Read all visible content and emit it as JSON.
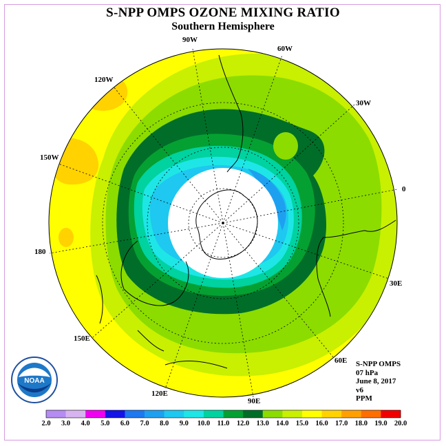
{
  "title": "S-NPP OMPS OZONE MIXING RATIO",
  "subtitle": "Southern Hemisphere",
  "longitude_labels": [
    "90W",
    "60W",
    "30W",
    "0",
    "30E",
    "60E",
    "90E",
    "120E",
    "150E",
    "180",
    "150W",
    "120W"
  ],
  "info": {
    "instrument": "S-NPP OMPS",
    "level": "07 hPa",
    "date": "June 8, 2017",
    "version": "v6",
    "units": "PPM"
  },
  "colorbar": {
    "labels": [
      "2.0",
      "3.0",
      "4.0",
      "5.0",
      "6.0",
      "7.0",
      "8.0",
      "9.0",
      "10.0",
      "11.0",
      "12.0",
      "13.0",
      "14.0",
      "15.0",
      "16.0",
      "17.0",
      "18.0",
      "19.0",
      "20.0"
    ],
    "colors": [
      "#b48cf2",
      "#d7b4f0",
      "#f000f0",
      "#1414e6",
      "#1e78f0",
      "#1ea0f0",
      "#1ec8f0",
      "#1ee6e6",
      "#00d2a0",
      "#05a032",
      "#006e28",
      "#8cdc00",
      "#c8f000",
      "#ffff00",
      "#ffd200",
      "#ffa000",
      "#ff6e00",
      "#f00000",
      "#8c5a3c"
    ]
  },
  "logo": {
    "text": "NOAA"
  },
  "map": {
    "projection": "south-polar-stereographic",
    "background_color": "#ffff00",
    "polar_night_color": "#ffffff",
    "coastline_color": "#000000"
  }
}
